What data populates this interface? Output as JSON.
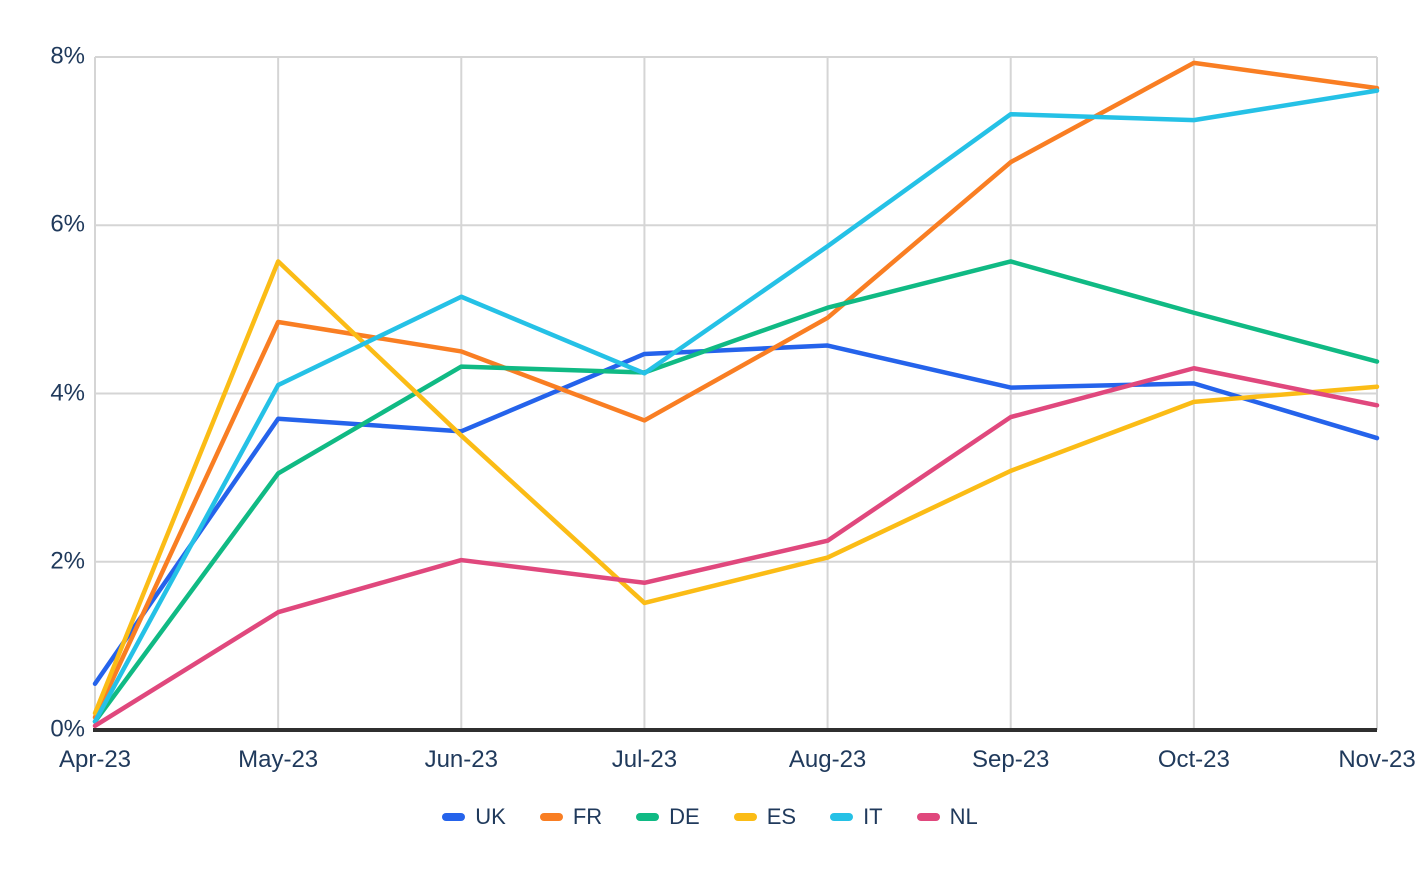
{
  "chart_data": {
    "type": "line",
    "title": "",
    "xlabel": "",
    "ylabel": "",
    "categories": [
      "Apr-23",
      "May-23",
      "Jun-23",
      "Jul-23",
      "Aug-23",
      "Sep-23",
      "Oct-23",
      "Nov-23"
    ],
    "series": [
      {
        "name": "UK",
        "color": "#2563EB",
        "values": [
          0.55,
          3.7,
          3.55,
          4.47,
          4.57,
          4.07,
          4.12,
          3.47
        ]
      },
      {
        "name": "FR",
        "color": "#F97E23",
        "values": [
          0.15,
          4.85,
          4.5,
          3.68,
          4.9,
          6.75,
          7.93,
          7.63
        ]
      },
      {
        "name": "DE",
        "color": "#10BA84",
        "values": [
          0.1,
          3.05,
          4.32,
          4.25,
          5.02,
          5.57,
          4.96,
          4.38
        ]
      },
      {
        "name": "ES",
        "color": "#FBBC16",
        "values": [
          0.2,
          5.57,
          3.5,
          1.51,
          2.05,
          3.08,
          3.9,
          4.08
        ]
      },
      {
        "name": "IT",
        "color": "#25C1E6",
        "values": [
          0.1,
          4.1,
          5.15,
          4.24,
          5.75,
          7.32,
          7.25,
          7.6
        ]
      },
      {
        "name": "NL",
        "color": "#E0487D",
        "values": [
          0.05,
          1.4,
          2.02,
          1.75,
          2.25,
          3.72,
          4.3,
          3.86
        ]
      }
    ],
    "ylim": [
      0,
      8
    ],
    "yticks": [
      {
        "value": 0,
        "label": "0%"
      },
      {
        "value": 2,
        "label": "2%"
      },
      {
        "value": 4,
        "label": "4%"
      },
      {
        "value": 6,
        "label": "6%"
      },
      {
        "value": 8,
        "label": "8%"
      }
    ],
    "grid": true,
    "legend_position": "bottom"
  },
  "theme": {
    "grid_color": "#D5D5D5",
    "axis_color": "#2F2F2F",
    "text_color": "#203A5C",
    "background": "#FFFFFF"
  }
}
